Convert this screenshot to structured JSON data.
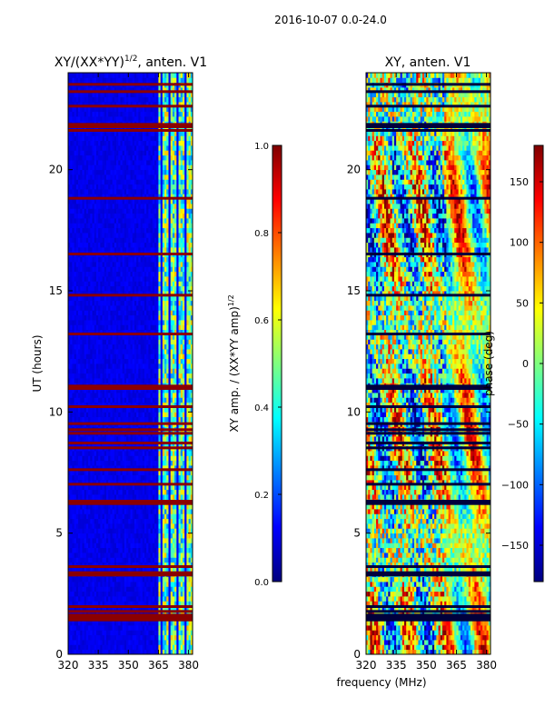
{
  "suptitle": "2016-10-07 0.0-24.0",
  "chart_data": [
    {
      "type": "heatmap",
      "title_main": "XY/(XX*YY)",
      "title_sup": "1/2",
      "title_tail": ", anten. V1",
      "ylabel": "UT (hours)",
      "xlim": [
        320,
        382
      ],
      "ylim": [
        0,
        24
      ],
      "xticks": [
        {
          "v": 320,
          "label": "320"
        },
        {
          "v": 335,
          "label": "335"
        },
        {
          "v": 350,
          "label": "350"
        },
        {
          "v": 365,
          "label": "365"
        },
        {
          "v": 380,
          "label": "380"
        }
      ],
      "yticks": [
        {
          "v": 0,
          "label": "0"
        },
        {
          "v": 5,
          "label": "5"
        },
        {
          "v": 10,
          "label": "10"
        },
        {
          "v": 15,
          "label": "15"
        },
        {
          "v": 20,
          "label": "20"
        }
      ],
      "colorbar": {
        "label_main": "XY amp. / (XX*YY amp)",
        "label_sup": "1/2",
        "range": [
          0.0,
          1.0
        ],
        "ticks": [
          {
            "v": 0.0,
            "label": "0.0"
          },
          {
            "v": 0.2,
            "label": "0.2"
          },
          {
            "v": 0.4,
            "label": "0.4"
          },
          {
            "v": 0.6,
            "label": "0.6"
          },
          {
            "v": 0.8,
            "label": "0.8"
          },
          {
            "v": 1.0,
            "label": "1.0"
          }
        ]
      },
      "flagged_times": [
        1.4,
        1.5,
        1.6,
        1.75,
        1.95,
        3.25,
        3.35,
        3.6,
        6.2,
        6.3,
        7.0,
        7.6,
        8.5,
        8.7,
        9.1,
        9.25,
        9.5,
        10.2,
        10.95,
        11.05,
        13.2,
        14.8,
        16.5,
        18.8,
        21.6,
        21.75,
        21.85,
        22.6,
        23.2,
        23.5
      ],
      "active_freq_range": [
        365,
        382
      ]
    },
    {
      "type": "heatmap",
      "title": "XY, anten. V1",
      "xlabel": "frequency (MHz)",
      "xlim": [
        320,
        382
      ],
      "ylim": [
        0,
        24
      ],
      "xticks": [
        {
          "v": 320,
          "label": "320"
        },
        {
          "v": 335,
          "label": "335"
        },
        {
          "v": 350,
          "label": "350"
        },
        {
          "v": 365,
          "label": "365"
        },
        {
          "v": 380,
          "label": "380"
        }
      ],
      "yticks": [
        {
          "v": 0,
          "label": "0"
        },
        {
          "v": 5,
          "label": "5"
        },
        {
          "v": 10,
          "label": "10"
        },
        {
          "v": 15,
          "label": "15"
        },
        {
          "v": 20,
          "label": "20"
        }
      ],
      "colorbar": {
        "label": "phase (deg)",
        "range": [
          -180,
          180
        ],
        "ticks": [
          {
            "v": -150,
            "label": "−150"
          },
          {
            "v": -100,
            "label": "−100"
          },
          {
            "v": -50,
            "label": "−50"
          },
          {
            "v": 0,
            "label": "0"
          },
          {
            "v": 50,
            "label": "50"
          },
          {
            "v": 100,
            "label": "100"
          },
          {
            "v": 150,
            "label": "150"
          }
        ]
      },
      "flagged_times": [
        1.4,
        1.5,
        1.6,
        1.75,
        1.95,
        3.25,
        3.35,
        3.6,
        6.2,
        6.3,
        7.0,
        7.6,
        8.5,
        8.7,
        9.1,
        9.25,
        9.5,
        10.2,
        10.95,
        11.05,
        13.2,
        14.8,
        16.5,
        18.8,
        21.6,
        21.75,
        21.85,
        22.6,
        23.2,
        23.5
      ]
    }
  ]
}
